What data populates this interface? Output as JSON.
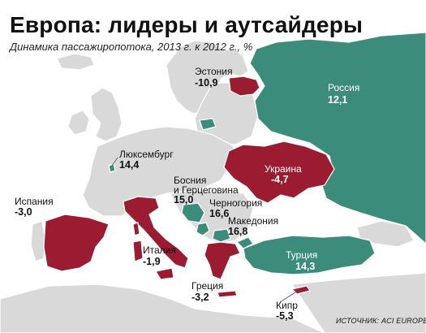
{
  "title": "Европа: лидеры и аутсайдеры",
  "subtitle": "Динамика пассажиропотока, 2013 г. к 2012 г., %",
  "source": "ИСТОЧНИК: ACI EUROPE",
  "colors": {
    "growth": "#3c8c7c",
    "decline": "#9b1b30",
    "land": "#d9d9d9",
    "sea": "#ffffff"
  },
  "countries": {
    "estonia": {
      "name": "Эстония",
      "value": "-10,9"
    },
    "russia": {
      "name": "Россия",
      "value": "12,1"
    },
    "luxembourg": {
      "name": "Люксембург",
      "value": "14,4"
    },
    "ukraine": {
      "name": "Украина",
      "value": "-4,7"
    },
    "bosnia": {
      "name1": "Босния",
      "name2": "и Герцеговина",
      "value": "15,0"
    },
    "montenegro": {
      "name": "Черногория",
      "value": "16,6"
    },
    "macedonia": {
      "name": "Македония",
      "value": "16,8"
    },
    "spain": {
      "name": "Испания",
      "value": "-3,0"
    },
    "italy": {
      "name": "Италия",
      "value": "-1,9"
    },
    "turkey": {
      "name": "Турция",
      "value": "14,3"
    },
    "greece": {
      "name": "Греция",
      "value": "-3,2"
    },
    "cyprus": {
      "name": "Кипр",
      "value": "-5,3"
    }
  }
}
